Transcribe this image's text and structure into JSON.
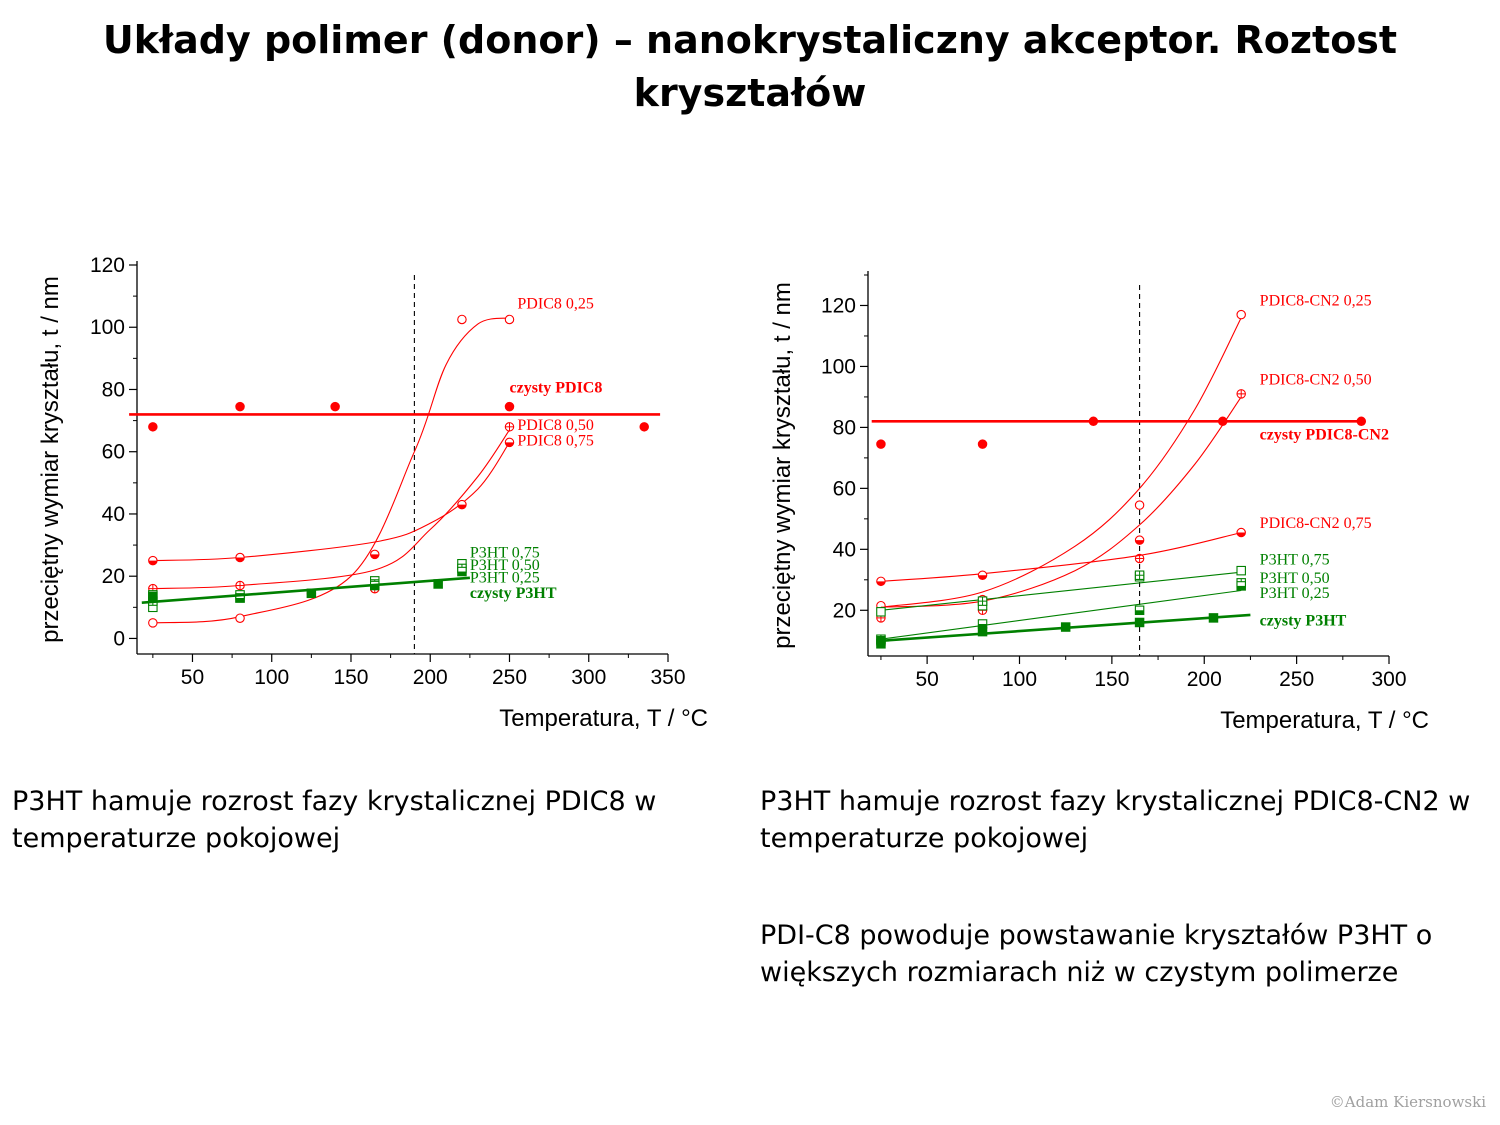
{
  "slide": {
    "title": "Układy polimer (donor) – nanokrystaliczny akceptor. Roztost kryształów",
    "caption_left": "P3HT hamuje rozrost fazy krystalicznej PDIC8 w temperaturze pokojowej",
    "caption_right_1": "P3HT hamuje rozrost fazy krystalicznej PDIC8-CN2 w temperaturze pokojowej",
    "caption_right_2": "PDI-C8 powoduje powstawanie kryształów P3HT o większych rozmiarach niż w czystym polimerze",
    "copyright": "©Adam Kiersnowski",
    "colors": {
      "red": "#ff0000",
      "green": "#008000",
      "axis": "#000000"
    }
  },
  "chart_data": [
    {
      "type": "scatter",
      "xlabel": "Temperatura, T / °C",
      "ylabel": "przeciętny wymiar kryształu, t / nm",
      "xlim": [
        15,
        350
      ],
      "ylim": [
        -5,
        120
      ],
      "xticks": [
        50,
        100,
        150,
        200,
        250,
        300,
        350
      ],
      "yticks": [
        0,
        20,
        40,
        60,
        80,
        100,
        120
      ],
      "vline": 190,
      "series": [
        {
          "name": "czysty PDIC8",
          "color": "#ff0000",
          "marker": "filled-circle",
          "bold": true,
          "x": [
            25,
            80,
            140,
            250,
            335
          ],
          "y": [
            68,
            74.5,
            74.5,
            74.5,
            68
          ],
          "fit": {
            "x": [
              10,
              345
            ],
            "y": [
              72,
              72
            ]
          },
          "label_x": 250,
          "label_y": 79
        },
        {
          "name": "PDIC8 0,25",
          "color": "#ff0000",
          "marker": "open-circle",
          "x": [
            25,
            80,
            125,
            165,
            220,
            250
          ],
          "y": [
            5,
            6.5,
            14.5,
            16,
            102.5,
            102.5
          ],
          "fit": {
            "x": [
              25,
              80,
              150,
              190,
              210,
              230,
              250
            ],
            "y": [
              5,
              7,
              20,
              60,
              88,
              101,
              103
            ]
          },
          "label_x": 255,
          "label_y": 106
        },
        {
          "name": "PDIC8 0,50",
          "color": "#ff0000",
          "marker": "crossed-circle",
          "x": [
            25,
            80,
            165,
            250
          ],
          "y": [
            16,
            17,
            16,
            68
          ],
          "fit": {
            "x": [
              25,
              80,
              165,
              200,
              230,
              250
            ],
            "y": [
              16,
              17,
              22,
              35,
              52,
              67
            ]
          },
          "label_x": 255,
          "label_y": 67
        },
        {
          "name": "PDIC8 0,75",
          "color": "#ff0000",
          "marker": "half-circle",
          "x": [
            25,
            80,
            165,
            220,
            250
          ],
          "y": [
            25,
            26,
            27,
            43,
            63
          ],
          "fit": {
            "x": [
              25,
              80,
              165,
              200,
              230,
              250
            ],
            "y": [
              25,
              26,
              31,
              37,
              48,
              63
            ]
          },
          "label_x": 255,
          "label_y": 62
        },
        {
          "name": "P3HT 0,75",
          "color": "#008000",
          "marker": "open-square",
          "x": [
            25,
            80,
            165,
            220
          ],
          "y": [
            10,
            14,
            18.5,
            24
          ],
          "label_x": 225,
          "label_y": 26
        },
        {
          "name": "P3HT 0,50",
          "color": "#008000",
          "marker": "crossed-square",
          "x": [
            25,
            80,
            165,
            220
          ],
          "y": [
            12,
            13,
            17.5,
            22.5
          ],
          "label_x": 225,
          "label_y": 22
        },
        {
          "name": "P3HT 0,25",
          "color": "#008000",
          "marker": "half-square",
          "x": [
            25,
            80,
            165,
            220
          ],
          "y": [
            14,
            13,
            17,
            21.5
          ],
          "label_x": 225,
          "label_y": 18
        },
        {
          "name": "czysty P3HT",
          "color": "#008000",
          "marker": "filled-square",
          "bold": true,
          "x": [
            25,
            125,
            205
          ],
          "y": [
            13.5,
            14.5,
            17.5
          ],
          "fit": {
            "x": [
              18,
              225
            ],
            "y": [
              11.5,
              19.5
            ]
          },
          "label_x": 225,
          "label_y": 13
        }
      ]
    },
    {
      "type": "scatter",
      "xlabel": "Temperatura, T / °C",
      "ylabel": "przeciętny wymiar kryształu, t / nm",
      "xlim": [
        18,
        300
      ],
      "ylim": [
        5,
        130
      ],
      "xticks": [
        50,
        100,
        150,
        200,
        250,
        300
      ],
      "yticks": [
        20,
        40,
        60,
        80,
        100,
        120
      ],
      "vline": 165,
      "series": [
        {
          "name": "czysty PDIC8-CN2",
          "color": "#ff0000",
          "marker": "filled-circle",
          "bold": true,
          "x": [
            25,
            80,
            140,
            210,
            285
          ],
          "y": [
            74.5,
            74.5,
            82,
            82,
            82
          ],
          "fit": {
            "x": [
              20,
              285
            ],
            "y": [
              82,
              82
            ]
          },
          "label_x": 230,
          "label_y": 76
        },
        {
          "name": "PDIC8-CN2 0,25",
          "color": "#ff0000",
          "marker": "open-circle",
          "x": [
            25,
            80,
            165,
            220
          ],
          "y": [
            21.5,
            23.5,
            54.5,
            117
          ],
          "fit": {
            "x": [
              25,
              80,
              130,
              165,
              195,
              220
            ],
            "y": [
              21,
              26,
              41,
              60,
              86,
              116
            ]
          },
          "label_x": 230,
          "label_y": 120
        },
        {
          "name": "PDIC8-CN2 0,50",
          "color": "#ff0000",
          "marker": "crossed-circle",
          "x": [
            25,
            80,
            165,
            220
          ],
          "y": [
            17.5,
            20,
            37,
            91
          ],
          "fit": {
            "x": [
              25,
              80,
              130,
              165,
              195,
              220
            ],
            "y": [
              21,
              23,
              33,
              48,
              68,
              90
            ]
          },
          "label_x": 230,
          "label_y": 94
        },
        {
          "name": "PDIC8-CN2 0,75",
          "color": "#ff0000",
          "marker": "half-circle",
          "x": [
            25,
            80,
            165,
            220
          ],
          "y": [
            29.5,
            31.5,
            43,
            45.5
          ],
          "fit": {
            "x": [
              25,
              80,
              165,
              220
            ],
            "y": [
              29.5,
              32,
              38,
              45.5
            ]
          },
          "label_x": 230,
          "label_y": 47
        },
        {
          "name": "P3HT 0,75",
          "color": "#008000",
          "marker": "open-square",
          "x": [
            25,
            80,
            165,
            220
          ],
          "y": [
            19.5,
            21.5,
            31,
            33
          ],
          "fit": {
            "x": [
              25,
              220
            ],
            "y": [
              20,
              32.5
            ]
          },
          "label_x": 230,
          "label_y": 35
        },
        {
          "name": "P3HT 0,50",
          "color": "#008000",
          "marker": "crossed-square",
          "x": [
            25,
            80,
            165,
            220
          ],
          "y": [
            10.5,
            23,
            31.5,
            29
          ],
          "label_x": 230,
          "label_y": 29
        },
        {
          "name": "P3HT 0,25",
          "color": "#008000",
          "marker": "half-square",
          "x": [
            25,
            80,
            165,
            220
          ],
          "y": [
            9,
            15.5,
            20,
            28
          ],
          "fit": {
            "x": [
              25,
              220
            ],
            "y": [
              10.5,
              26.5
            ]
          },
          "label_x": 230,
          "label_y": 24
        },
        {
          "name": "czysty P3HT",
          "color": "#008000",
          "marker": "filled-square",
          "bold": true,
          "x": [
            25,
            80,
            125,
            165,
            205
          ],
          "y": [
            10,
            13,
            14.5,
            16,
            17.5
          ],
          "fit": {
            "x": [
              25,
              225
            ],
            "y": [
              10,
              18.5
            ]
          },
          "label_x": 230,
          "label_y": 15
        }
      ]
    }
  ]
}
